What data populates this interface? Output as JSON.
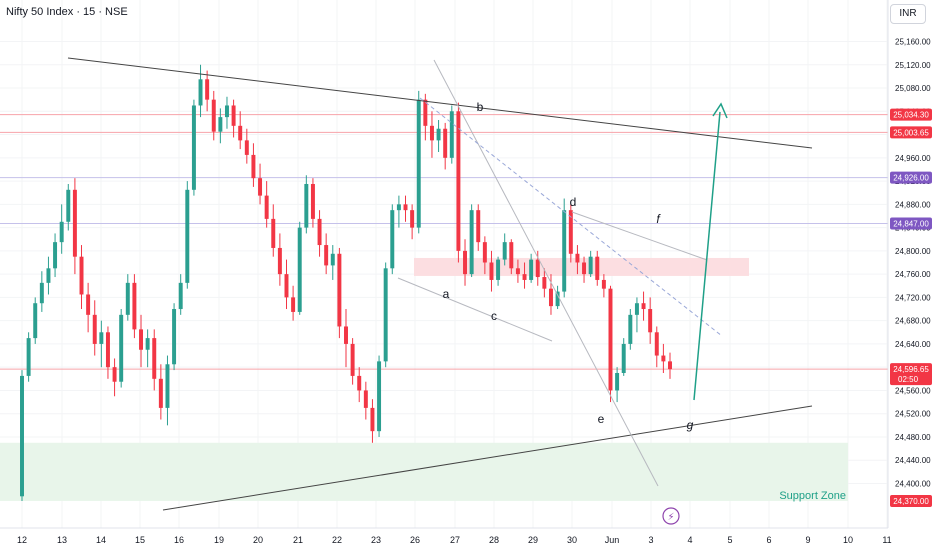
{
  "header": {
    "symbol_title": "Nifty 50 Index · 15 · NSE",
    "currency_button": "INR"
  },
  "colors": {
    "bull": "#2b9f90",
    "bear": "#f23645",
    "pivot_line": "#f7a3a9",
    "purple_line": "#c5c1ea",
    "support_zone": "#e8f5ea",
    "resistance_zone": "#fcdee1",
    "arrow": "#1fa088",
    "trendline": "#555555",
    "channel": "#b7b9c0",
    "purple_badge": "#7e57c2",
    "red_badge": "#f23645",
    "grid": "#f3f4f6"
  },
  "chart_data": {
    "type": "candlestick",
    "symbol": "Nifty 50 Index",
    "interval": "15",
    "exchange": "NSE",
    "currency": "INR",
    "y_axis": {
      "ylim": [
        24350,
        25200
      ],
      "ticks": [
        "25,160.00",
        "25,120.00",
        "25,080.00",
        "25,040.00",
        "25,000.00",
        "24,960.00",
        "24,920.00",
        "24,880.00",
        "24,840.00",
        "24,800.00",
        "24,760.00",
        "24,720.00",
        "24,680.00",
        "24,640.00",
        "24,600.00",
        "24,560.00",
        "24,520.00",
        "24,480.00",
        "24,440.00",
        "24,400.00"
      ]
    },
    "x_axis": {
      "ticks": [
        "12",
        "13",
        "14",
        "15",
        "16",
        "19",
        "20",
        "21",
        "22",
        "23",
        "26",
        "27",
        "28",
        "29",
        "30",
        "Jun",
        "3",
        "4",
        "5",
        "6",
        "9",
        "10",
        "11"
      ]
    },
    "price_levels": [
      {
        "value": 25034.3,
        "label": "25,034.30",
        "style": "red"
      },
      {
        "value": 25003.65,
        "label": "25,003.65",
        "style": "red"
      },
      {
        "value": 24926.0,
        "label": "24,926.00",
        "style": "purple"
      },
      {
        "value": 24847.0,
        "label": "24,847.00",
        "style": "purple"
      },
      {
        "value": 24596.65,
        "label": "24,596.65",
        "sublabel": "02:50",
        "style": "last"
      },
      {
        "value": 24370.0,
        "label": "24,370.00",
        "style": "red-badge-only"
      }
    ],
    "candles": [
      [
        24378,
        24595,
        24370,
        24585
      ],
      [
        24585,
        24660,
        24575,
        24650
      ],
      [
        24650,
        24720,
        24640,
        24710
      ],
      [
        24710,
        24765,
        24695,
        24745
      ],
      [
        24745,
        24790,
        24725,
        24770
      ],
      [
        24770,
        24830,
        24755,
        24815
      ],
      [
        24815,
        24880,
        24795,
        24850
      ],
      [
        24850,
        24915,
        24835,
        24905
      ],
      [
        24905,
        24925,
        24760,
        24790
      ],
      [
        24790,
        24810,
        24700,
        24725
      ],
      [
        24725,
        24745,
        24660,
        24690
      ],
      [
        24690,
        24715,
        24620,
        24640
      ],
      [
        24640,
        24680,
        24600,
        24660
      ],
      [
        24660,
        24670,
        24580,
        24600
      ],
      [
        24600,
        24615,
        24550,
        24575
      ],
      [
        24575,
        24700,
        24565,
        24690
      ],
      [
        24690,
        24760,
        24680,
        24745
      ],
      [
        24745,
        24760,
        24650,
        24665
      ],
      [
        24665,
        24690,
        24600,
        24630
      ],
      [
        24630,
        24665,
        24600,
        24650
      ],
      [
        24650,
        24665,
        24560,
        24580
      ],
      [
        24580,
        24605,
        24510,
        24530
      ],
      [
        24530,
        24620,
        24500,
        24605
      ],
      [
        24605,
        24710,
        24595,
        24700
      ],
      [
        24700,
        24760,
        24690,
        24745
      ],
      [
        24745,
        24920,
        24735,
        24905
      ],
      [
        24905,
        25060,
        24895,
        25050
      ],
      [
        25050,
        25120,
        25030,
        25095
      ],
      [
        25095,
        25110,
        25040,
        25060
      ],
      [
        25060,
        25075,
        24990,
        25005
      ],
      [
        25005,
        25045,
        24985,
        25030
      ],
      [
        25030,
        25065,
        25010,
        25050
      ],
      [
        25050,
        25060,
        24995,
        25015
      ],
      [
        25015,
        25040,
        24975,
        24990
      ],
      [
        24990,
        25010,
        24950,
        24965
      ],
      [
        24965,
        24985,
        24910,
        24925
      ],
      [
        24925,
        24950,
        24880,
        24895
      ],
      [
        24895,
        24920,
        24840,
        24855
      ],
      [
        24855,
        24880,
        24790,
        24805
      ],
      [
        24805,
        24830,
        24740,
        24760
      ],
      [
        24760,
        24785,
        24700,
        24720
      ],
      [
        24720,
        24740,
        24680,
        24695
      ],
      [
        24695,
        24850,
        24690,
        24840
      ],
      [
        24840,
        24930,
        24830,
        24915
      ],
      [
        24915,
        24925,
        24840,
        24855
      ],
      [
        24855,
        24870,
        24790,
        24810
      ],
      [
        24810,
        24830,
        24760,
        24775
      ],
      [
        24775,
        24810,
        24750,
        24795
      ],
      [
        24795,
        24805,
        24650,
        24670
      ],
      [
        24670,
        24700,
        24600,
        24640
      ],
      [
        24640,
        24650,
        24570,
        24585
      ],
      [
        24585,
        24600,
        24540,
        24560
      ],
      [
        24560,
        24575,
        24510,
        24530
      ],
      [
        24530,
        24545,
        24470,
        24490
      ],
      [
        24490,
        24620,
        24480,
        24610
      ],
      [
        24610,
        24780,
        24600,
        24770
      ],
      [
        24770,
        24880,
        24760,
        24870
      ],
      [
        24870,
        24895,
        24840,
        24880
      ],
      [
        24880,
        24895,
        24850,
        24870
      ],
      [
        24870,
        24880,
        24820,
        24840
      ],
      [
        24840,
        25075,
        24830,
        25060
      ],
      [
        25060,
        25070,
        24990,
        25015
      ],
      [
        25015,
        25040,
        24960,
        24990
      ],
      [
        24990,
        25025,
        24970,
        25010
      ],
      [
        25010,
        25020,
        24940,
        24960
      ],
      [
        24960,
        25050,
        24950,
        25040
      ],
      [
        25040,
        25055,
        24780,
        24800
      ],
      [
        24800,
        24820,
        24740,
        24760
      ],
      [
        24760,
        24880,
        24755,
        24870
      ],
      [
        24870,
        24880,
        24800,
        24815
      ],
      [
        24815,
        24825,
        24760,
        24780
      ],
      [
        24780,
        24800,
        24730,
        24750
      ],
      [
        24750,
        24790,
        24740,
        24785
      ],
      [
        24785,
        24830,
        24775,
        24815
      ],
      [
        24815,
        24820,
        24760,
        24770
      ],
      [
        24770,
        24785,
        24745,
        24760
      ],
      [
        24760,
        24780,
        24735,
        24750
      ],
      [
        24750,
        24795,
        24745,
        24785
      ],
      [
        24785,
        24800,
        24740,
        24755
      ],
      [
        24755,
        24770,
        24720,
        24735
      ],
      [
        24735,
        24760,
        24690,
        24705
      ],
      [
        24705,
        24740,
        24700,
        24730
      ],
      [
        24730,
        24890,
        24720,
        24870
      ],
      [
        24870,
        24880,
        24780,
        24795
      ],
      [
        24795,
        24810,
        24760,
        24780
      ],
      [
        24780,
        24790,
        24745,
        24760
      ],
      [
        24760,
        24800,
        24755,
        24790
      ],
      [
        24790,
        24800,
        24740,
        24750
      ],
      [
        24750,
        24760,
        24720,
        24735
      ],
      [
        24735,
        24740,
        24540,
        24560
      ],
      [
        24560,
        24600,
        24540,
        24590
      ],
      [
        24590,
        24650,
        24585,
        24640
      ],
      [
        24640,
        24700,
        24630,
        24690
      ],
      [
        24690,
        24720,
        24660,
        24710
      ],
      [
        24710,
        24730,
        24680,
        24700
      ],
      [
        24700,
        24720,
        24640,
        24660
      ],
      [
        24660,
        24670,
        24600,
        24620
      ],
      [
        24620,
        24640,
        24590,
        24610
      ],
      [
        24610,
        24625,
        24580,
        24596.65
      ]
    ],
    "zones": [
      {
        "name": "Support Zone",
        "from": 24370,
        "to": 24470,
        "x_from": 0,
        "x_to": 1.0
      },
      {
        "name": "",
        "from": 24725,
        "to": 24750,
        "x_from": 0.5,
        "x_to": 1.0
      }
    ],
    "wave_labels": [
      "a",
      "b",
      "c",
      "d",
      "e",
      "f",
      "g"
    ],
    "annotations": {
      "support_zone_label": "Support Zone",
      "lightning_badge": "⚡"
    }
  }
}
